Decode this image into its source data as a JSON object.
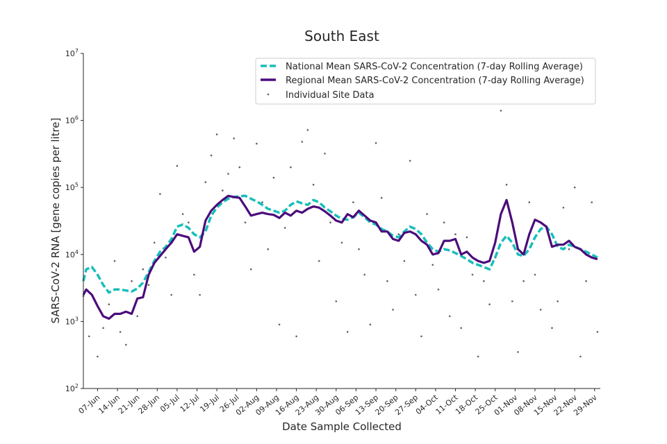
{
  "chart_data": {
    "type": "line",
    "title": "South East",
    "xlabel": "Date Sample Collected",
    "ylabel": "SARS-CoV-2 RNA [gene copies per litre]",
    "yscale": "log",
    "ylim": [
      100,
      10000000
    ],
    "y_ticks": [
      {
        "value": 100,
        "base": "10",
        "exp": "2"
      },
      {
        "value": 1000,
        "base": "10",
        "exp": "3"
      },
      {
        "value": 10000,
        "base": "10",
        "exp": "4"
      },
      {
        "value": 100000,
        "base": "10",
        "exp": "5"
      },
      {
        "value": 1000000,
        "base": "10",
        "exp": "6"
      },
      {
        "value": 10000000,
        "base": "10",
        "exp": "7"
      }
    ],
    "x_range_days": [
      0,
      182
    ],
    "x_ticks": [
      {
        "day": 5,
        "label": "07-Jun"
      },
      {
        "day": 12,
        "label": "14-Jun"
      },
      {
        "day": 19,
        "label": "21-Jun"
      },
      {
        "day": 26,
        "label": "28-Jun"
      },
      {
        "day": 33,
        "label": "05-Jul"
      },
      {
        "day": 40,
        "label": "12-Jul"
      },
      {
        "day": 47,
        "label": "19-Jul"
      },
      {
        "day": 54,
        "label": "26-Jul"
      },
      {
        "day": 61,
        "label": "02-Aug"
      },
      {
        "day": 68,
        "label": "09-Aug"
      },
      {
        "day": 75,
        "label": "16-Aug"
      },
      {
        "day": 82,
        "label": "23-Aug"
      },
      {
        "day": 89,
        "label": "30-Aug"
      },
      {
        "day": 96,
        "label": "06-Sep"
      },
      {
        "day": 103,
        "label": "13-Sep"
      },
      {
        "day": 110,
        "label": "20-Sep"
      },
      {
        "day": 117,
        "label": "27-Sep"
      },
      {
        "day": 124,
        "label": "04-Oct"
      },
      {
        "day": 131,
        "label": "11-Oct"
      },
      {
        "day": 138,
        "label": "18-Oct"
      },
      {
        "day": 145,
        "label": "25-Oct"
      },
      {
        "day": 152,
        "label": "01-Nov"
      },
      {
        "day": 159,
        "label": "08-Nov"
      },
      {
        "day": 166,
        "label": "15-Nov"
      },
      {
        "day": 173,
        "label": "22-Nov"
      },
      {
        "day": 180,
        "label": "29-Nov"
      }
    ],
    "series": [
      {
        "name": "National Mean SARS-CoV-2 Concentration (7-day Rolling Average)",
        "color": "#17bebb",
        "style": "dashed",
        "points": [
          [
            0,
            4000
          ],
          [
            1,
            6000
          ],
          [
            3,
            6500
          ],
          [
            5,
            5000
          ],
          [
            7,
            3500
          ],
          [
            9,
            2700
          ],
          [
            11,
            3000
          ],
          [
            13,
            3000
          ],
          [
            15,
            2900
          ],
          [
            17,
            2800
          ],
          [
            19,
            3100
          ],
          [
            21,
            3800
          ],
          [
            23,
            5500
          ],
          [
            25,
            8000
          ],
          [
            27,
            11000
          ],
          [
            29,
            13000
          ],
          [
            31,
            17000
          ],
          [
            33,
            26000
          ],
          [
            35,
            28000
          ],
          [
            37,
            25000
          ],
          [
            39,
            20000
          ],
          [
            41,
            18000
          ],
          [
            43,
            22000
          ],
          [
            45,
            38000
          ],
          [
            47,
            50000
          ],
          [
            49,
            60000
          ],
          [
            51,
            68000
          ],
          [
            53,
            72000
          ],
          [
            55,
            74000
          ],
          [
            57,
            75000
          ],
          [
            59,
            68000
          ],
          [
            61,
            62000
          ],
          [
            63,
            55000
          ],
          [
            65,
            48000
          ],
          [
            67,
            45000
          ],
          [
            69,
            42000
          ],
          [
            71,
            45000
          ],
          [
            73,
            55000
          ],
          [
            75,
            62000
          ],
          [
            77,
            58000
          ],
          [
            79,
            55000
          ],
          [
            81,
            65000
          ],
          [
            83,
            60000
          ],
          [
            85,
            50000
          ],
          [
            87,
            44000
          ],
          [
            89,
            38000
          ],
          [
            91,
            34000
          ],
          [
            93,
            33000
          ],
          [
            95,
            36000
          ],
          [
            97,
            42000
          ],
          [
            99,
            36000
          ],
          [
            101,
            30000
          ],
          [
            103,
            28000
          ],
          [
            105,
            24000
          ],
          [
            107,
            22000
          ],
          [
            109,
            19000
          ],
          [
            111,
            18000
          ],
          [
            113,
            22000
          ],
          [
            115,
            26000
          ],
          [
            117,
            24000
          ],
          [
            119,
            20000
          ],
          [
            121,
            15000
          ],
          [
            123,
            12000
          ],
          [
            125,
            11000
          ],
          [
            127,
            12000
          ],
          [
            129,
            11500
          ],
          [
            131,
            10500
          ],
          [
            133,
            9500
          ],
          [
            135,
            8500
          ],
          [
            137,
            7500
          ],
          [
            139,
            7000
          ],
          [
            141,
            6500
          ],
          [
            143,
            6000
          ],
          [
            145,
            9000
          ],
          [
            147,
            15000
          ],
          [
            149,
            19000
          ],
          [
            151,
            15000
          ],
          [
            153,
            10000
          ],
          [
            155,
            9500
          ],
          [
            157,
            12000
          ],
          [
            159,
            18000
          ],
          [
            161,
            24000
          ],
          [
            163,
            26000
          ],
          [
            165,
            20000
          ],
          [
            167,
            13000
          ],
          [
            169,
            12000
          ],
          [
            171,
            14000
          ],
          [
            173,
            13000
          ],
          [
            175,
            12000
          ],
          [
            177,
            11000
          ],
          [
            179,
            10000
          ],
          [
            181,
            9000
          ]
        ]
      },
      {
        "name": "Regional Mean SARS-CoV-2 Concentration (7-day Rolling Average)",
        "color": "#4b0c7a",
        "style": "solid",
        "points": [
          [
            0,
            2500
          ],
          [
            1,
            3000
          ],
          [
            3,
            2500
          ],
          [
            5,
            1700
          ],
          [
            7,
            1200
          ],
          [
            9,
            1100
          ],
          [
            11,
            1300
          ],
          [
            13,
            1300
          ],
          [
            15,
            1400
          ],
          [
            17,
            1300
          ],
          [
            19,
            2200
          ],
          [
            21,
            2300
          ],
          [
            23,
            5000
          ],
          [
            25,
            7500
          ],
          [
            27,
            9500
          ],
          [
            29,
            12000
          ],
          [
            31,
            15000
          ],
          [
            33,
            20000
          ],
          [
            35,
            19000
          ],
          [
            37,
            18000
          ],
          [
            39,
            11000
          ],
          [
            41,
            13000
          ],
          [
            43,
            32000
          ],
          [
            45,
            45000
          ],
          [
            47,
            55000
          ],
          [
            49,
            65000
          ],
          [
            51,
            75000
          ],
          [
            53,
            72000
          ],
          [
            55,
            70000
          ],
          [
            57,
            52000
          ],
          [
            59,
            38000
          ],
          [
            61,
            40000
          ],
          [
            63,
            42000
          ],
          [
            65,
            40000
          ],
          [
            67,
            39000
          ],
          [
            69,
            35000
          ],
          [
            71,
            42000
          ],
          [
            73,
            38000
          ],
          [
            75,
            45000
          ],
          [
            77,
            42000
          ],
          [
            79,
            48000
          ],
          [
            81,
            52000
          ],
          [
            83,
            50000
          ],
          [
            85,
            44000
          ],
          [
            87,
            38000
          ],
          [
            89,
            32000
          ],
          [
            91,
            30000
          ],
          [
            93,
            40000
          ],
          [
            95,
            36000
          ],
          [
            97,
            45000
          ],
          [
            99,
            38000
          ],
          [
            101,
            32000
          ],
          [
            103,
            30000
          ],
          [
            105,
            22000
          ],
          [
            107,
            22000
          ],
          [
            109,
            17000
          ],
          [
            111,
            16000
          ],
          [
            113,
            21000
          ],
          [
            115,
            22000
          ],
          [
            117,
            20000
          ],
          [
            119,
            16000
          ],
          [
            121,
            14000
          ],
          [
            123,
            10000
          ],
          [
            125,
            10500
          ],
          [
            127,
            16000
          ],
          [
            129,
            16000
          ],
          [
            131,
            17000
          ],
          [
            133,
            10000
          ],
          [
            135,
            11000
          ],
          [
            137,
            9000
          ],
          [
            139,
            8000
          ],
          [
            141,
            7500
          ],
          [
            143,
            8000
          ],
          [
            145,
            15000
          ],
          [
            147,
            40000
          ],
          [
            149,
            65000
          ],
          [
            151,
            30000
          ],
          [
            153,
            12000
          ],
          [
            155,
            10000
          ],
          [
            157,
            20000
          ],
          [
            159,
            33000
          ],
          [
            161,
            30000
          ],
          [
            163,
            26000
          ],
          [
            165,
            13000
          ],
          [
            167,
            14000
          ],
          [
            169,
            14000
          ],
          [
            171,
            16000
          ],
          [
            173,
            13000
          ],
          [
            175,
            12000
          ],
          [
            177,
            10000
          ],
          [
            179,
            9000
          ],
          [
            181,
            8500
          ]
        ]
      },
      {
        "name": "Individual Site Data",
        "color": "#606060",
        "style": "scatter",
        "points": [
          [
            0,
            2400
          ],
          [
            2,
            600
          ],
          [
            5,
            300
          ],
          [
            7,
            800
          ],
          [
            9,
            1800
          ],
          [
            11,
            8000
          ],
          [
            13,
            700
          ],
          [
            15,
            450
          ],
          [
            17,
            4000
          ],
          [
            19,
            1200
          ],
          [
            21,
            6000
          ],
          [
            23,
            3500
          ],
          [
            25,
            15000
          ],
          [
            27,
            80000
          ],
          [
            29,
            9000
          ],
          [
            31,
            2500
          ],
          [
            33,
            210000
          ],
          [
            35,
            40000
          ],
          [
            37,
            30000
          ],
          [
            39,
            5000
          ],
          [
            41,
            2500
          ],
          [
            43,
            120000
          ],
          [
            45,
            300000
          ],
          [
            47,
            620000
          ],
          [
            49,
            90000
          ],
          [
            51,
            160000
          ],
          [
            53,
            540000
          ],
          [
            55,
            200000
          ],
          [
            57,
            30000
          ],
          [
            59,
            6000
          ],
          [
            61,
            450000
          ],
          [
            63,
            60000
          ],
          [
            65,
            12000
          ],
          [
            67,
            140000
          ],
          [
            69,
            900
          ],
          [
            71,
            25000
          ],
          [
            73,
            200000
          ],
          [
            75,
            600
          ],
          [
            77,
            480000
          ],
          [
            79,
            720000
          ],
          [
            81,
            110000
          ],
          [
            83,
            8000
          ],
          [
            85,
            320000
          ],
          [
            87,
            30000
          ],
          [
            89,
            2000
          ],
          [
            91,
            15000
          ],
          [
            93,
            700
          ],
          [
            95,
            60000
          ],
          [
            97,
            12000
          ],
          [
            99,
            5000
          ],
          [
            101,
            900
          ],
          [
            103,
            460000
          ],
          [
            105,
            70000
          ],
          [
            107,
            4000
          ],
          [
            109,
            1500
          ],
          [
            111,
            20000
          ],
          [
            113,
            8000
          ],
          [
            115,
            250000
          ],
          [
            117,
            2500
          ],
          [
            119,
            600
          ],
          [
            121,
            40000
          ],
          [
            123,
            7000
          ],
          [
            125,
            3000
          ],
          [
            127,
            30000
          ],
          [
            129,
            1200
          ],
          [
            131,
            20000
          ],
          [
            133,
            800
          ],
          [
            135,
            18000
          ],
          [
            137,
            5000
          ],
          [
            139,
            300
          ],
          [
            141,
            4000
          ],
          [
            143,
            1800
          ],
          [
            145,
            9000
          ],
          [
            147,
            1400000
          ],
          [
            149,
            110000
          ],
          [
            151,
            2000
          ],
          [
            153,
            350
          ],
          [
            155,
            4000
          ],
          [
            157,
            60000
          ],
          [
            159,
            5000
          ],
          [
            161,
            1500
          ],
          [
            163,
            25000
          ],
          [
            165,
            800
          ],
          [
            167,
            2000
          ],
          [
            169,
            50000
          ],
          [
            171,
            12000
          ],
          [
            173,
            100000
          ],
          [
            175,
            300
          ],
          [
            177,
            4000
          ],
          [
            179,
            60000
          ],
          [
            181,
            700
          ]
        ]
      }
    ],
    "legend": {
      "position": "top-right",
      "entries": [
        "National Mean SARS-CoV-2 Concentration (7-day Rolling Average)",
        "Regional Mean SARS-CoV-2 Concentration (7-day Rolling Average)",
        "Individual Site Data"
      ]
    }
  }
}
